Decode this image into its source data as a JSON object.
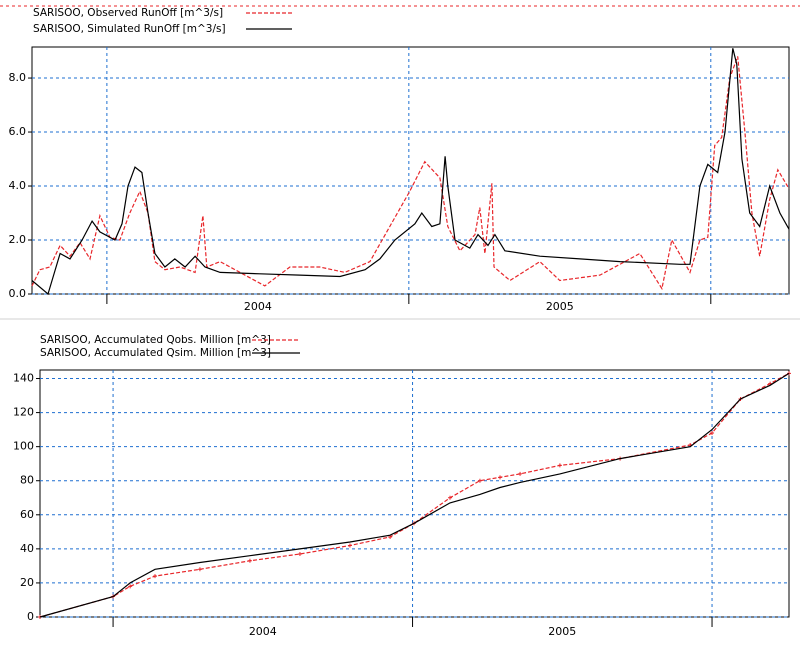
{
  "chart_data": [
    {
      "type": "line",
      "xlim": [
        2003.752,
        2006.259
      ],
      "ylim": [
        0,
        9.15
      ],
      "xticks": [
        2004,
        2005,
        2006
      ],
      "xlabels": [
        {
          "value": 2004.5,
          "label": "2004"
        },
        {
          "value": 2005.5,
          "label": "2005"
        }
      ],
      "yticks": [
        {
          "value": 0,
          "label": "0.0"
        },
        {
          "value": 2,
          "label": "2.0"
        },
        {
          "value": 4,
          "label": "4.0"
        },
        {
          "value": 6,
          "label": "6.0"
        },
        {
          "value": 8,
          "label": "8.0"
        }
      ],
      "grid": true,
      "series": [
        {
          "name": "SARISOO, Observed RunOff [m^3/s]",
          "color": "#e8262a",
          "dash": true,
          "markers": false,
          "x": [
            2003.752,
            2003.778,
            2003.811,
            2003.845,
            2003.878,
            2003.911,
            2003.944,
            2003.977,
            2004.01,
            2004.043,
            2004.076,
            2004.109,
            2004.136,
            2004.159,
            2004.192,
            2004.242,
            2004.292,
            2004.318,
            2004.331,
            2004.375,
            2004.441,
            2004.523,
            2004.606,
            2004.705,
            2004.788,
            2004.871,
            2004.937,
            2005.003,
            2005.053,
            2005.103,
            2005.129,
            2005.169,
            2005.219,
            2005.235,
            2005.252,
            2005.275,
            2005.282,
            2005.335,
            2005.434,
            2005.5,
            2005.633,
            2005.765,
            2005.838,
            2005.871,
            2005.931,
            2005.964,
            2005.99,
            2006.013,
            2006.036,
            2006.063,
            2006.089,
            2006.113,
            2006.136,
            2006.162,
            2006.195,
            2006.222,
            2006.259
          ],
          "values": [
            0.3,
            0.9,
            1.0,
            1.8,
            1.4,
            1.9,
            1.3,
            2.9,
            2.1,
            2.0,
            3.0,
            3.8,
            3.0,
            1.2,
            0.9,
            1.0,
            0.8,
            2.9,
            1.0,
            1.2,
            0.8,
            0.3,
            1.0,
            1.0,
            0.8,
            1.2,
            2.5,
            3.8,
            4.9,
            4.3,
            2.5,
            1.6,
            2.2,
            3.2,
            1.5,
            4.1,
            1.0,
            0.5,
            1.2,
            0.5,
            0.7,
            1.5,
            0.2,
            2.0,
            0.8,
            2.0,
            2.1,
            5.5,
            5.8,
            8.0,
            8.8,
            6.0,
            3.0,
            1.4,
            3.5,
            4.6,
            3.9
          ]
        },
        {
          "name": "SARISOO, Simulated RunOff [m^3/s]",
          "color": "#000000",
          "dash": false,
          "markers": false,
          "x": [
            2003.752,
            2003.805,
            2003.845,
            2003.878,
            2003.918,
            2003.951,
            2003.977,
            2004.027,
            2004.05,
            2004.07,
            2004.093,
            2004.116,
            2004.136,
            2004.159,
            2004.192,
            2004.225,
            2004.259,
            2004.292,
            2004.325,
            2004.375,
            2004.507,
            2004.639,
            2004.772,
            2004.855,
            2004.904,
            2004.954,
            2005.02,
            2005.043,
            2005.076,
            2005.103,
            2005.12,
            2005.129,
            2005.153,
            2005.202,
            2005.229,
            2005.262,
            2005.285,
            2005.318,
            2005.434,
            2005.567,
            2005.699,
            2005.898,
            2005.931,
            2005.964,
            2005.99,
            2006.023,
            2006.047,
            2006.073,
            2006.086,
            2006.103,
            2006.129,
            2006.162,
            2006.195,
            2006.229,
            2006.259
          ],
          "values": [
            0.5,
            0.0,
            1.5,
            1.3,
            2.0,
            2.7,
            2.3,
            2.0,
            2.6,
            4.0,
            4.7,
            4.5,
            3.0,
            1.5,
            1.0,
            1.3,
            1.0,
            1.4,
            1.0,
            0.8,
            0.75,
            0.7,
            0.65,
            0.9,
            1.3,
            2.0,
            2.6,
            3.0,
            2.5,
            2.6,
            5.1,
            4.0,
            2.0,
            1.7,
            2.2,
            1.8,
            2.2,
            1.6,
            1.4,
            1.3,
            1.2,
            1.1,
            1.1,
            4.0,
            4.8,
            4.5,
            6.0,
            9.1,
            8.5,
            5.0,
            3.0,
            2.5,
            4.0,
            3.0,
            2.4
          ]
        }
      ]
    },
    {
      "type": "line",
      "xlim": [
        2003.756,
        2006.257
      ],
      "ylim": [
        0,
        145
      ],
      "xticks": [
        2004,
        2005,
        2006
      ],
      "xlabels": [
        {
          "value": 2004.5,
          "label": "2004"
        },
        {
          "value": 2005.5,
          "label": "2005"
        }
      ],
      "yticks": [
        0,
        20,
        40,
        60,
        80,
        100,
        120,
        140
      ],
      "grid": true,
      "series": [
        {
          "name": "SARISOO, Accumulated Qobs. Million [m^3]",
          "color": "#e8262a",
          "dash": true,
          "markers": true,
          "x": [
            2003.756,
            2004.0,
            2004.057,
            2004.14,
            2004.29,
            2004.457,
            2004.624,
            2004.791,
            2004.925,
            2005.005,
            2005.125,
            2005.225,
            2005.292,
            2005.359,
            2005.492,
            2005.693,
            2005.927,
            2006.0,
            2006.095,
            2006.194,
            2006.257
          ],
          "values": [
            0,
            12,
            18,
            24,
            28,
            33,
            37,
            42,
            47,
            55,
            70,
            80,
            82,
            84,
            89,
            93,
            101,
            108,
            128,
            137,
            143
          ]
        },
        {
          "name": "SARISOO, Accumulated Qsim. Million [m^3]",
          "color": "#000000",
          "dash": false,
          "markers": false,
          "x": [
            2003.756,
            2004.0,
            2004.057,
            2004.14,
            2004.29,
            2004.457,
            2004.624,
            2004.791,
            2004.925,
            2005.005,
            2005.125,
            2005.225,
            2005.292,
            2005.359,
            2005.492,
            2005.693,
            2005.927,
            2006.0,
            2006.095,
            2006.194,
            2006.257
          ],
          "values": [
            0,
            12,
            20,
            28,
            32,
            36,
            40,
            44,
            48,
            55,
            67,
            72,
            76,
            79,
            84,
            93,
            100,
            110,
            128,
            136,
            143
          ]
        }
      ]
    }
  ]
}
